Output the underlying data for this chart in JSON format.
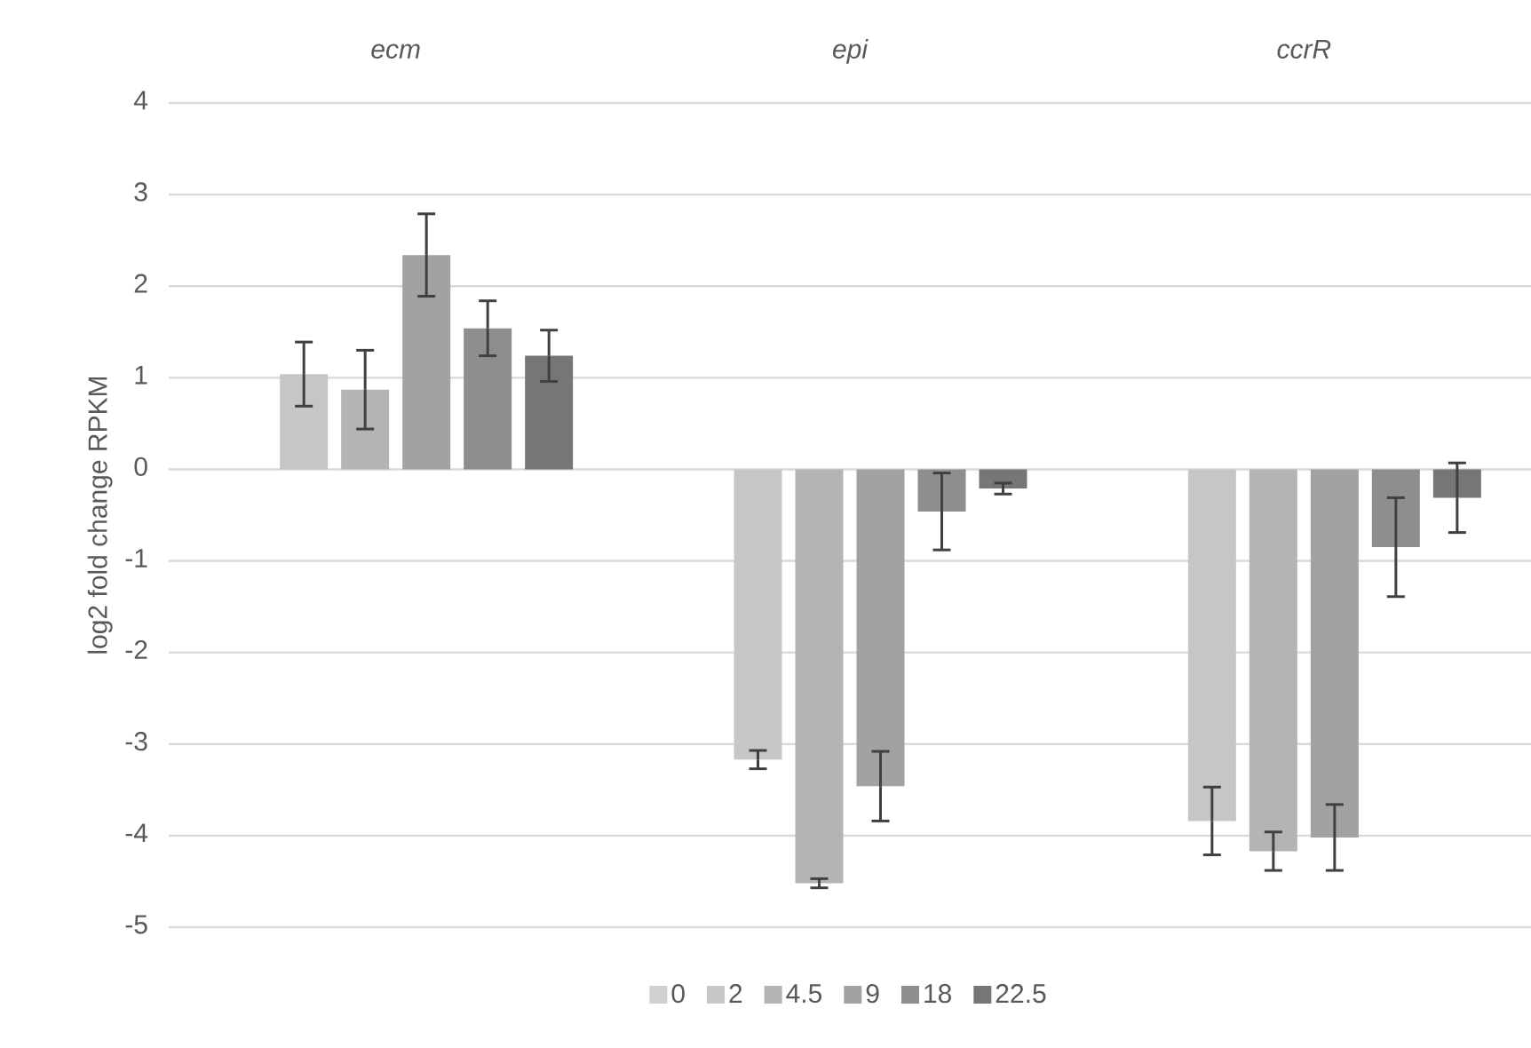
{
  "chart_data": {
    "type": "bar",
    "ylabel": "log2 fold change RPKM",
    "categories": [
      "ecm",
      "epi",
      "ccrR"
    ],
    "series": [
      {
        "name": "0",
        "color": "#d0d0d0",
        "values": [
          null,
          null,
          null
        ],
        "errors": [
          null,
          null,
          null
        ]
      },
      {
        "name": "2",
        "color": "#c6c6c6",
        "values": [
          1.04,
          -3.17,
          -3.84
        ],
        "errors": [
          0.35,
          0.1,
          0.37
        ]
      },
      {
        "name": "4.5",
        "color": "#b4b4b4",
        "values": [
          0.87,
          -4.52,
          -4.17
        ],
        "errors": [
          0.43,
          0.05,
          0.21
        ]
      },
      {
        "name": "9",
        "color": "#a2a2a2",
        "values": [
          2.34,
          -3.46,
          -4.02
        ],
        "errors": [
          0.45,
          0.38,
          0.36
        ]
      },
      {
        "name": "18",
        "color": "#8e8e8e",
        "values": [
          1.54,
          -0.46,
          -0.85
        ],
        "errors": [
          0.3,
          0.42,
          0.54
        ]
      },
      {
        "name": "22.5",
        "color": "#767676",
        "values": [
          1.24,
          -0.21,
          -0.31
        ],
        "errors": [
          0.28,
          0.06,
          0.38
        ]
      }
    ],
    "ylim": [
      -5,
      4
    ],
    "yticks": [
      -5,
      -4,
      -3,
      -2,
      -1,
      0,
      1,
      2,
      3,
      4
    ],
    "grid": "y",
    "legend": "bottom"
  }
}
